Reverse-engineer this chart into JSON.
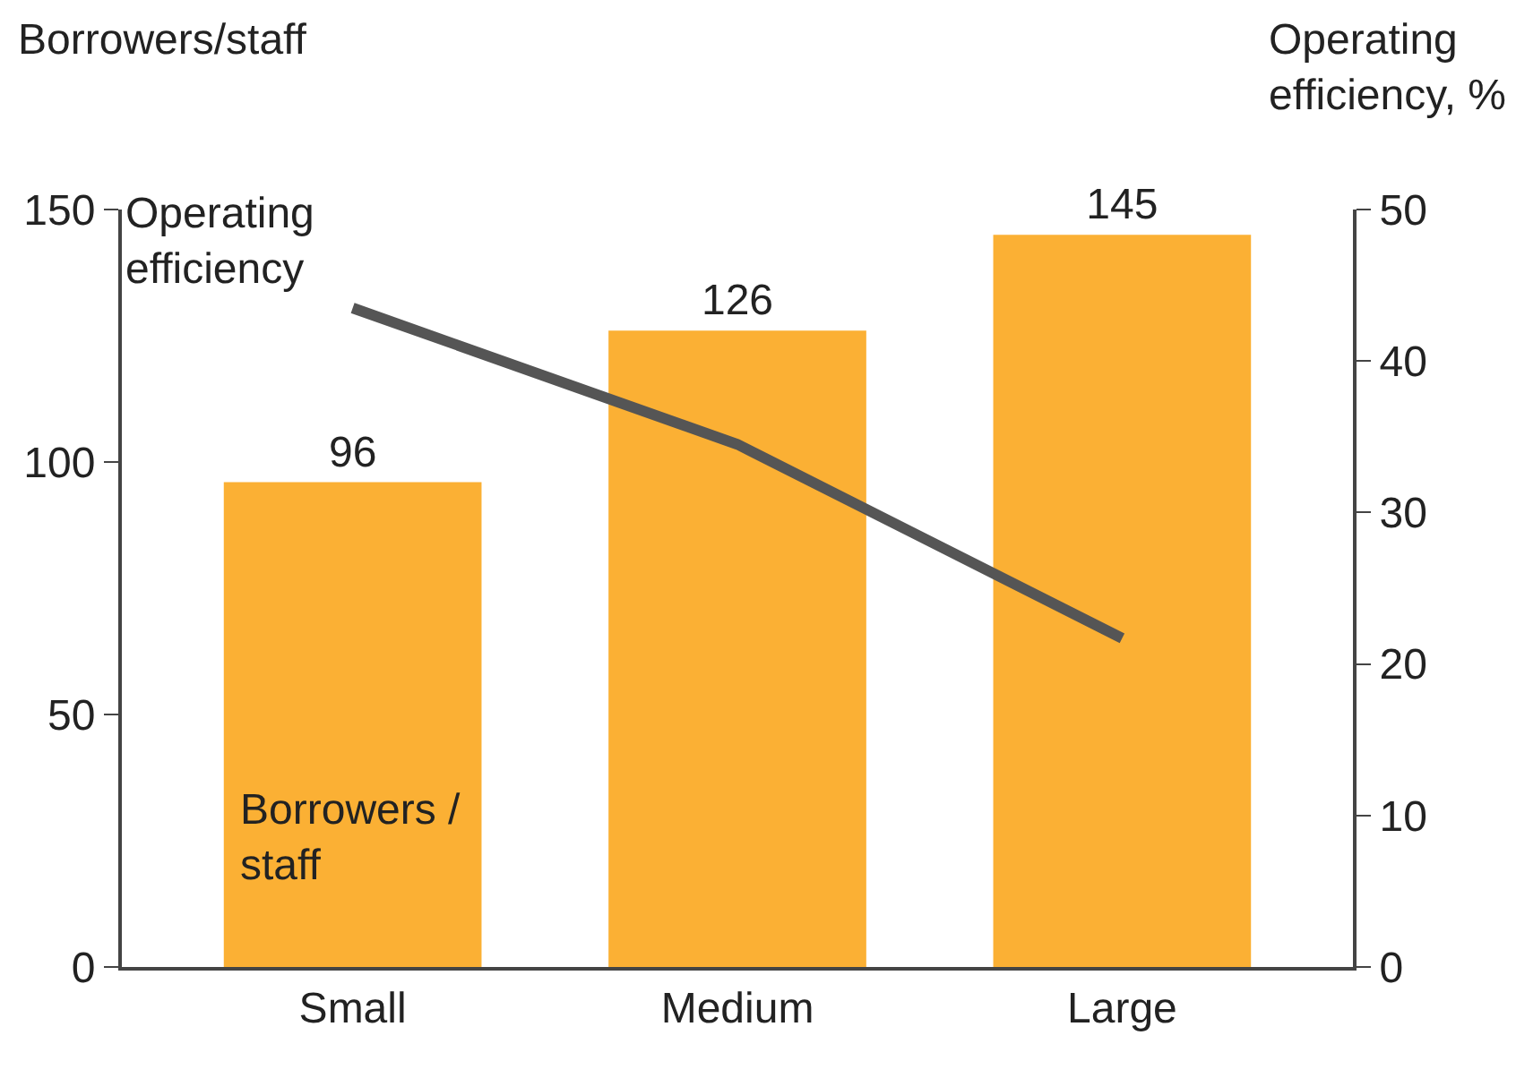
{
  "chart_data": {
    "type": "bar",
    "categories": [
      "Small",
      "Medium",
      "Large"
    ],
    "ylabel": "Borrowers/staff",
    "y2label": "Operating efficiency, %",
    "series": [
      {
        "name": "Borrowers / staff",
        "color": "#fbb034",
        "values": [
          96,
          126,
          145
        ],
        "value_labels": [
          "96",
          "126",
          "145"
        ]
      },
      {
        "name": "Operating efficiency",
        "type": "line",
        "axis": "y2",
        "color": "#555555",
        "values": [
          43.5,
          34.5,
          21.7
        ],
        "line_style": "solid",
        "marker": "none"
      }
    ],
    "ylim": [
      0,
      150
    ],
    "yticks": [
      0,
      50,
      100,
      150
    ],
    "y2lim": [
      0,
      50
    ],
    "y2ticks": [
      0,
      10,
      20,
      30,
      40,
      50
    ],
    "legend": false
  }
}
